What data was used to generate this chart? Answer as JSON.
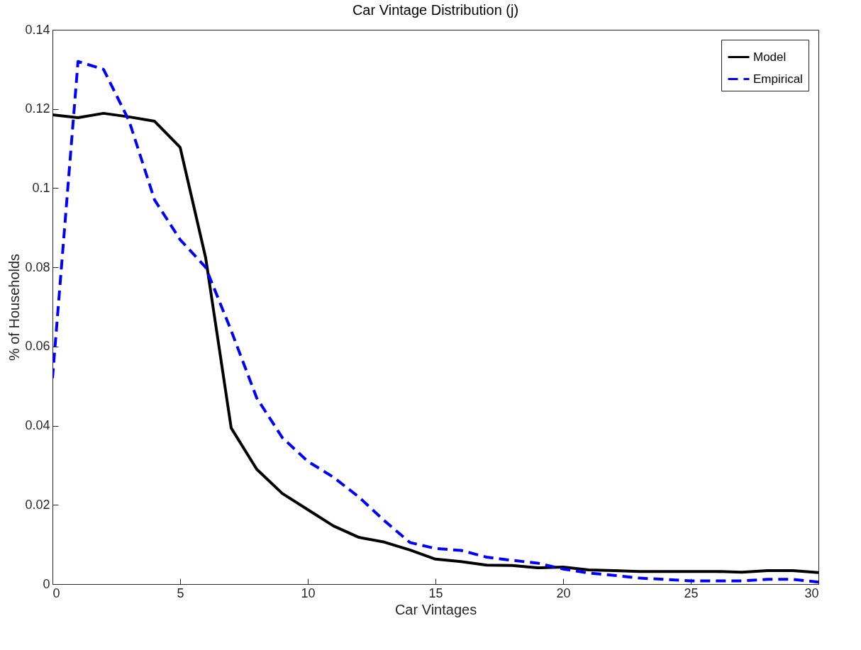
{
  "chart_data": {
    "type": "line",
    "title": "Car Vintage Distribution (j)",
    "xlabel": "Car Vintages",
    "ylabel": "% of Households",
    "xlim": [
      0,
      30
    ],
    "xticks": [
      0,
      5,
      10,
      15,
      20,
      25,
      30
    ],
    "ylim": [
      0,
      0.14
    ],
    "yticks": [
      0,
      0.02,
      0.04,
      0.06,
      0.08,
      0.1,
      0.12,
      0.14
    ],
    "grid": false,
    "legend": "top right",
    "marker": "none",
    "x": [
      0,
      1,
      2,
      3,
      4,
      5,
      6,
      7,
      8,
      9,
      10,
      11,
      12,
      13,
      14,
      15,
      16,
      17,
      18,
      19,
      20,
      21,
      22,
      23,
      24,
      25,
      26,
      27,
      28,
      29,
      30
    ],
    "series": [
      {
        "name": "Model",
        "color": "#000000",
        "line_style": "solid",
        "values": [
          0.1185,
          0.1178,
          0.1189,
          0.118,
          0.1169,
          0.1103,
          0.0824,
          0.0394,
          0.029,
          0.0229,
          0.0188,
          0.0147,
          0.0118,
          0.0106,
          0.0086,
          0.0063,
          0.0057,
          0.0048,
          0.0047,
          0.0041,
          0.0043,
          0.0036,
          0.0034,
          0.0032,
          0.0032,
          0.0032,
          0.0032,
          0.003,
          0.0034,
          0.0034,
          0.0029
        ]
      },
      {
        "name": "Empirical",
        "color": "#0000ff",
        "line_style": "dashed",
        "values": [
          0.052,
          0.132,
          0.13,
          0.117,
          0.097,
          0.087,
          0.08,
          0.064,
          0.047,
          0.037,
          0.031,
          0.027,
          0.022,
          0.016,
          0.0105,
          0.009,
          0.0085,
          0.0068,
          0.006,
          0.0053,
          0.0038,
          0.0028,
          0.0022,
          0.0015,
          0.0012,
          0.0008,
          0.0008,
          0.0008,
          0.0012,
          0.0012,
          0.0005
        ]
      }
    ]
  }
}
